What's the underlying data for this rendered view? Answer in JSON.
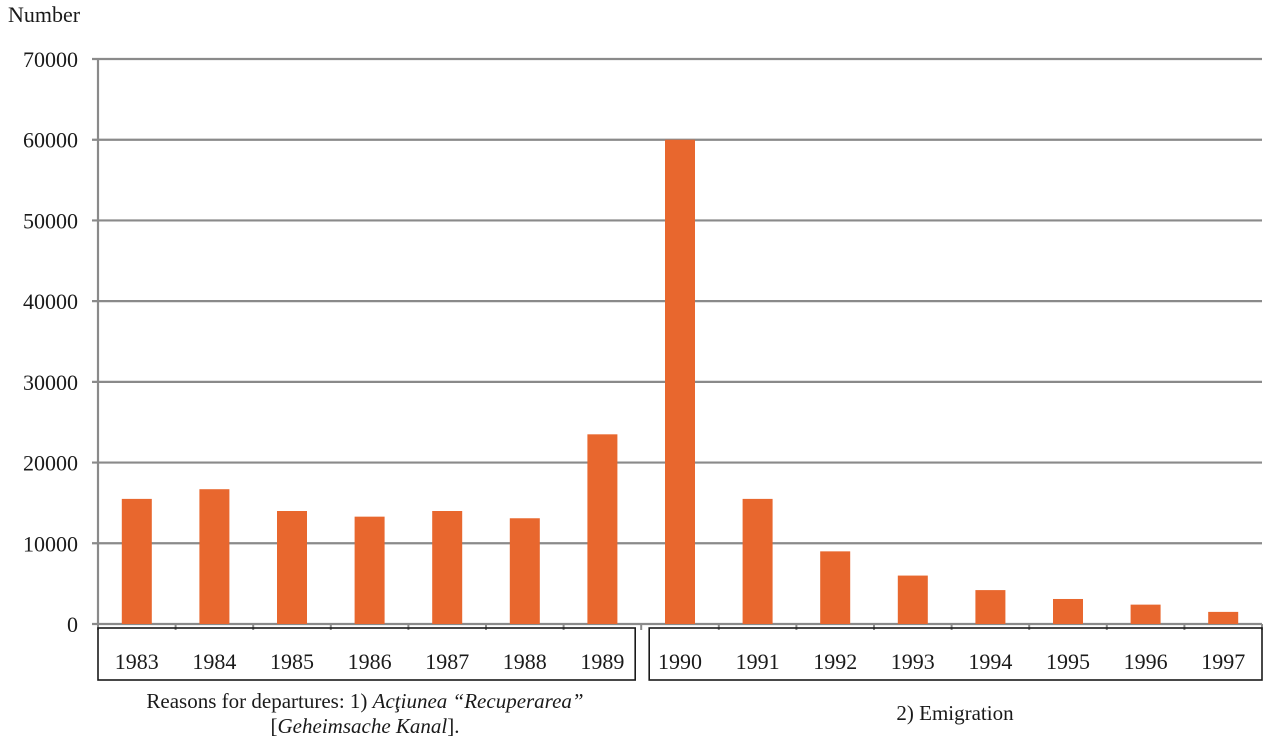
{
  "chart_data": {
    "type": "bar",
    "ylabel": "Number",
    "ylim": [
      0,
      70000
    ],
    "yticks": [
      0,
      10000,
      20000,
      30000,
      40000,
      50000,
      60000,
      70000
    ],
    "grid": true,
    "bar_color": "#e8672e",
    "categories": [
      "1983",
      "1984",
      "1985",
      "1986",
      "1987",
      "1988",
      "1989",
      "1990",
      "1991",
      "1992",
      "1993",
      "1994",
      "1995",
      "1996",
      "1997"
    ],
    "values": [
      15500,
      16700,
      14000,
      13300,
      14000,
      13100,
      23500,
      60000,
      15500,
      9000,
      6000,
      4200,
      3100,
      2400,
      1500
    ],
    "groups": [
      {
        "categories": [
          "1983",
          "1984",
          "1985",
          "1986",
          "1987",
          "1988",
          "1989"
        ],
        "label_parts": [
          "Reasons for departures: 1) ",
          "Acţiunea “Recuperarea”",
          "[",
          "Geheimsache Kanal",
          "]."
        ]
      },
      {
        "categories": [
          "1990",
          "1991",
          "1992",
          "1993",
          "1994",
          "1995",
          "1996",
          "1997"
        ],
        "label": "2) Emigration"
      }
    ]
  }
}
